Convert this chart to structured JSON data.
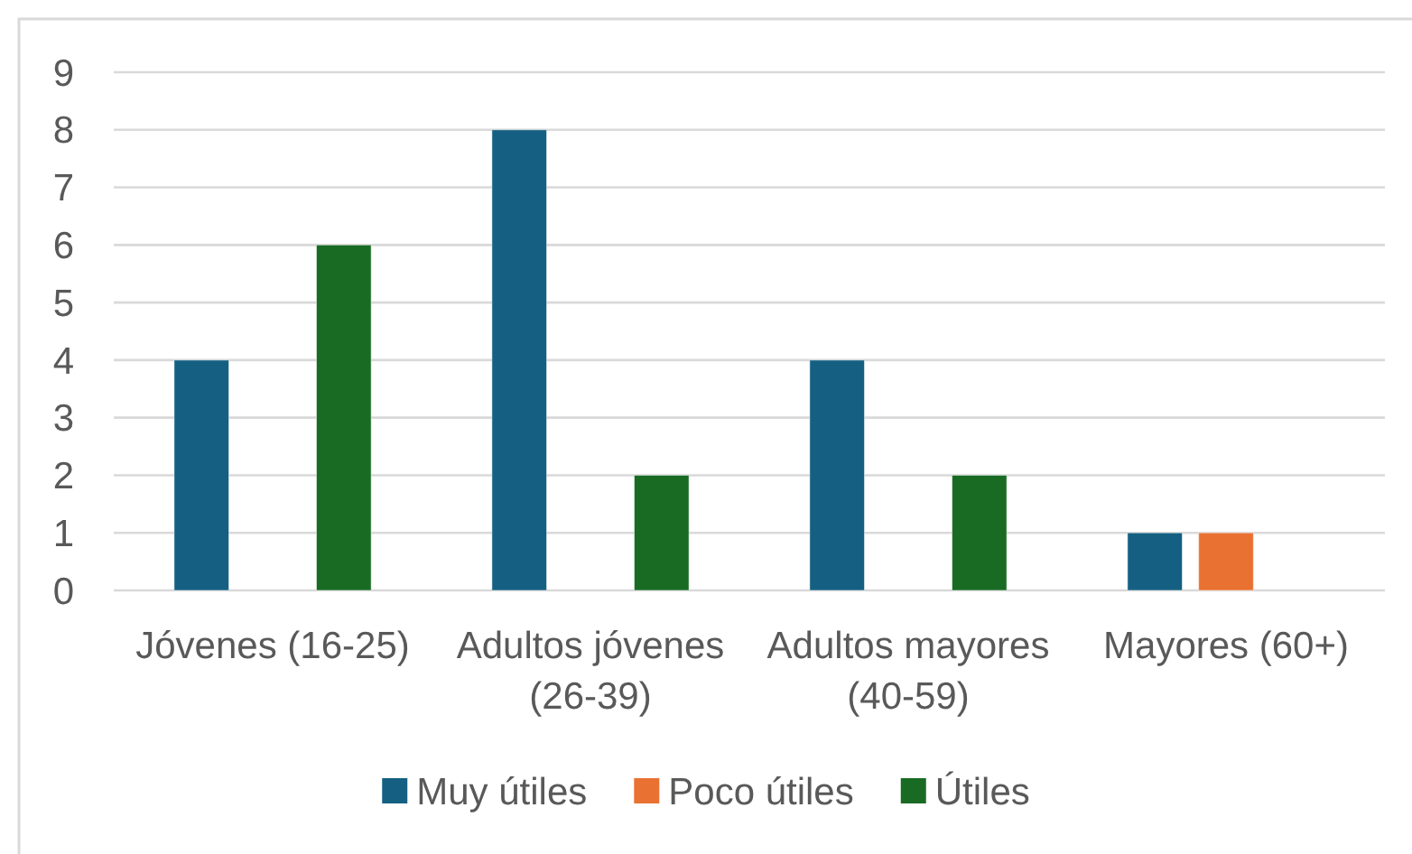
{
  "chart_data": {
    "type": "bar",
    "categories": [
      "Jóvenes (16-25)",
      "Adultos jóvenes (26-39)",
      "Adultos mayores (40-59)",
      "Mayores (60+)"
    ],
    "series": [
      {
        "name": "Muy útiles",
        "color": "#156082",
        "values": [
          4,
          8,
          4,
          1
        ]
      },
      {
        "name": "Poco útiles",
        "color": "#e97132",
        "values": [
          null,
          null,
          null,
          1
        ]
      },
      {
        "name": "Útiles",
        "color": "#196b24",
        "values": [
          6,
          2,
          2,
          null
        ]
      }
    ],
    "ylim": [
      0,
      9
    ],
    "yticks": [
      0,
      1,
      2,
      3,
      4,
      5,
      6,
      7,
      8,
      9
    ],
    "grid": "y",
    "legend": "bottom"
  }
}
